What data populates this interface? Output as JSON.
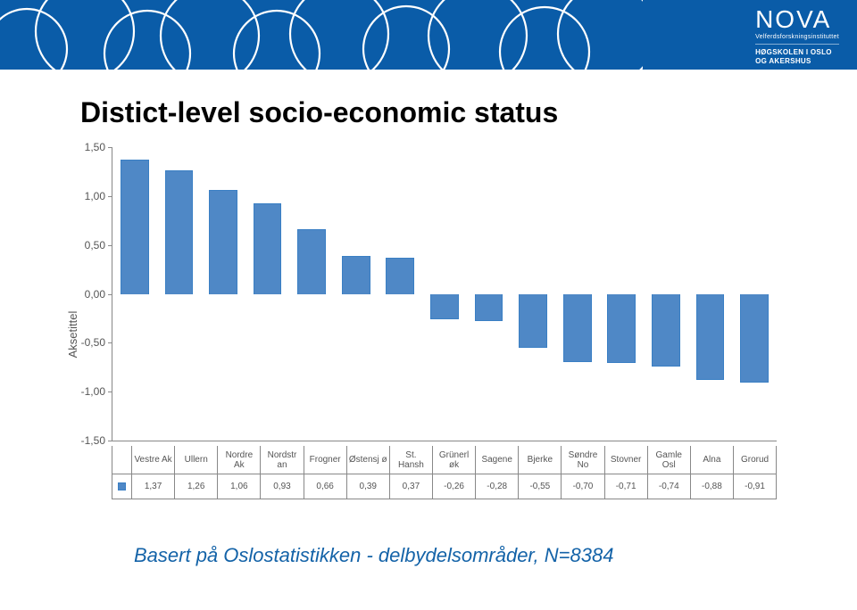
{
  "header": {
    "band_bg": "#0a5ca8",
    "circle_stroke": "#ffffff",
    "logo": "NOVA",
    "logo_sub1": "Velferdsforskningsinstituttet",
    "logo_sub2_line1": "HØGSKOLEN I OSLO",
    "logo_sub2_line2": "OG AKERSHUS"
  },
  "title": "Distict-level socio-economic status",
  "chart": {
    "type": "bar",
    "y_label": "Aksetittel",
    "ylim_min": -1.5,
    "ylim_max": 1.5,
    "ytick_step": 0.5,
    "yticks": [
      "1,50",
      "1,00",
      "0,50",
      "0,00",
      "-0,50",
      "-1,00",
      "-1,50"
    ],
    "bar_color": "#4f88c6",
    "bar_border": "#3a7fc4",
    "grid_color": "#888888",
    "label_fontsize": 12,
    "categories": [
      {
        "label": "Vestre Ak",
        "value": 1.37,
        "value_label": "1,37"
      },
      {
        "label": "Ullern",
        "value": 1.26,
        "value_label": "1,26"
      },
      {
        "label": "Nordre Ak",
        "value": 1.06,
        "value_label": "1,06"
      },
      {
        "label": "Nordstr an",
        "value": 0.93,
        "value_label": "0,93"
      },
      {
        "label": "Frogner",
        "value": 0.66,
        "value_label": "0,66"
      },
      {
        "label": "Østensj ø",
        "value": 0.39,
        "value_label": "0,39"
      },
      {
        "label": "St. Hansh",
        "value": 0.37,
        "value_label": "0,37"
      },
      {
        "label": "Grünerl øk",
        "value": -0.26,
        "value_label": "-0,26"
      },
      {
        "label": "Sagene",
        "value": -0.28,
        "value_label": "-0,28"
      },
      {
        "label": "Bjerke",
        "value": -0.55,
        "value_label": "-0,55"
      },
      {
        "label": "Søndre No",
        "value": -0.7,
        "value_label": "-0,70"
      },
      {
        "label": "Stovner",
        "value": -0.71,
        "value_label": "-0,71"
      },
      {
        "label": "Gamle Osl",
        "value": -0.74,
        "value_label": "-0,74"
      },
      {
        "label": "Alna",
        "value": -0.88,
        "value_label": "-0,88"
      },
      {
        "label": "Grorud",
        "value": -0.91,
        "value_label": "-0,91"
      }
    ]
  },
  "footer": "Basert på Oslostatistikken - delbydelsområder, N=8384"
}
